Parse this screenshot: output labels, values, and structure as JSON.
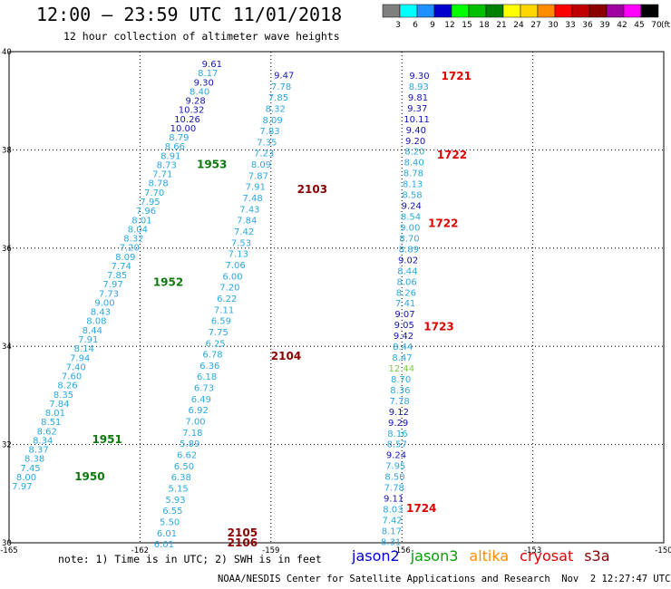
{
  "header": {
    "title": "12:00 – 23:59 UTC 11/01/2018",
    "subtitle": "12 hour collection of altimeter wave heights"
  },
  "color_scale": {
    "bins": [
      {
        "label": "3",
        "color": "#7f7f7f"
      },
      {
        "label": "6",
        "color": "#00ffff"
      },
      {
        "label": "9",
        "color": "#1e90ff"
      },
      {
        "label": "12",
        "color": "#0000cd"
      },
      {
        "label": "15",
        "color": "#00ff00"
      },
      {
        "label": "18",
        "color": "#00c000"
      },
      {
        "label": "21",
        "color": "#008000"
      },
      {
        "label": "24",
        "color": "#ffff00"
      },
      {
        "label": "27",
        "color": "#ffd700"
      },
      {
        "label": "30",
        "color": "#ff8c00"
      },
      {
        "label": "33",
        "color": "#ff0000"
      },
      {
        "label": "36",
        "color": "#c00000"
      },
      {
        "label": "39",
        "color": "#8b0000"
      },
      {
        "label": "42",
        "color": "#a000a0"
      },
      {
        "label": "45",
        "color": "#ff00ff"
      },
      {
        "label": "70",
        "color": "#000000"
      }
    ],
    "unit": "(ft)"
  },
  "map": {
    "lat_ticks": [
      "40",
      "38",
      "36",
      "34",
      "32",
      "30"
    ],
    "lon_ticks": [
      "-165",
      "-162",
      "-159",
      "-156",
      "-153",
      "-150"
    ],
    "colors": {
      "light": "#2aa8e0",
      "dark": "#1414b4",
      "green": "#0a7a0a",
      "darkred": "#8b0000",
      "red": "#e00000",
      "lime": "#7ccc3c"
    },
    "passes": [
      {
        "label": "1953",
        "color": "green",
        "lon": -160.7,
        "lat": 37.7
      },
      {
        "label": "1952",
        "color": "green",
        "lon": -161.7,
        "lat": 35.3
      },
      {
        "label": "1951",
        "color": "green",
        "lon": -163.1,
        "lat": 32.1
      },
      {
        "label": "1950",
        "color": "green",
        "lon": -163.5,
        "lat": 31.35
      },
      {
        "label": "2103",
        "color": "darkred",
        "lon": -158.4,
        "lat": 37.2
      },
      {
        "label": "2104",
        "color": "darkred",
        "lon": -159.0,
        "lat": 33.8
      },
      {
        "label": "2105",
        "color": "darkred",
        "lon": -160.0,
        "lat": 30.2
      },
      {
        "label": "2106",
        "color": "darkred",
        "lon": -160.0,
        "lat": 30.0
      },
      {
        "label": "1721",
        "color": "red",
        "lon": -155.1,
        "lat": 39.5
      },
      {
        "label": "1722",
        "color": "red",
        "lon": -155.2,
        "lat": 37.9
      },
      {
        "label": "1722",
        "color": "red",
        "lon": -155.4,
        "lat": 36.5
      },
      {
        "label": "1723",
        "color": "red",
        "lon": -155.5,
        "lat": 34.4
      },
      {
        "label": "1724",
        "color": "red",
        "lon": -155.9,
        "lat": 30.7
      }
    ],
    "tracks": [
      {
        "name": "track-a",
        "start": [
          -160.35,
          39.76
        ],
        "end": [
          -164.7,
          31.16
        ],
        "values": [
          [
            "9.61",
            "dark"
          ],
          [
            "8.17",
            "light"
          ],
          [
            "9.30",
            "dark"
          ],
          [
            "8.40",
            "light"
          ],
          [
            "9.28",
            "dark"
          ],
          [
            "10.32",
            "dark"
          ],
          [
            "10.26",
            "dark"
          ],
          [
            "10.00",
            "dark"
          ],
          [
            "8.79",
            "light"
          ],
          [
            "8.66",
            "light"
          ],
          [
            "8.91",
            "light"
          ],
          [
            "8.73",
            "light"
          ],
          [
            "7.71",
            "light"
          ],
          [
            "8.78",
            "light"
          ],
          [
            "7.70",
            "light"
          ],
          [
            "7.95",
            "light"
          ],
          [
            "7.96",
            "light"
          ],
          [
            "8.01",
            "light"
          ],
          [
            "8.04",
            "light"
          ],
          [
            "8.32",
            "light"
          ],
          [
            "7.20",
            "light"
          ],
          [
            "8.09",
            "light"
          ],
          [
            "7.74",
            "light"
          ],
          [
            "7.85",
            "light"
          ],
          [
            "7.97",
            "light"
          ],
          [
            "7.73",
            "light"
          ],
          [
            "9.00",
            "light"
          ],
          [
            "8.43",
            "light"
          ],
          [
            "8.08",
            "light"
          ],
          [
            "8.44",
            "light"
          ],
          [
            "7.91",
            "light"
          ],
          [
            "8.14",
            "light"
          ],
          [
            "7.94",
            "light"
          ],
          [
            "7.40",
            "light"
          ],
          [
            "7.60",
            "light"
          ],
          [
            "8.26",
            "light"
          ],
          [
            "8.35",
            "light"
          ],
          [
            "7.84",
            "light"
          ],
          [
            "8.01",
            "light"
          ],
          [
            "8.51",
            "light"
          ],
          [
            "8.62",
            "light"
          ],
          [
            "8.34",
            "light"
          ],
          [
            "8.37",
            "light"
          ],
          [
            "8.38",
            "light"
          ],
          [
            "7.45",
            "light"
          ],
          [
            "8.00",
            "light"
          ],
          [
            "7.97",
            "light"
          ]
        ]
      },
      {
        "name": "track-b",
        "start": [
          -158.7,
          39.53
        ],
        "end": [
          -161.45,
          29.98
        ],
        "values": [
          [
            "9.47",
            "dark"
          ],
          [
            "7.78",
            "light"
          ],
          [
            "7.85",
            "light"
          ],
          [
            "8.32",
            "light"
          ],
          [
            "8.09",
            "light"
          ],
          [
            "7.83",
            "light"
          ],
          [
            "7.35",
            "light"
          ],
          [
            "7.23",
            "light"
          ],
          [
            "8.09",
            "light"
          ],
          [
            "7.87",
            "light"
          ],
          [
            "7.91",
            "light"
          ],
          [
            "7.48",
            "light"
          ],
          [
            "7.43",
            "light"
          ],
          [
            "7.84",
            "light"
          ],
          [
            "7.42",
            "light"
          ],
          [
            "7.53",
            "light"
          ],
          [
            "7.13",
            "light"
          ],
          [
            "7.06",
            "light"
          ],
          [
            "6.00",
            "light"
          ],
          [
            "7.20",
            "light"
          ],
          [
            "6.22",
            "light"
          ],
          [
            "7.11",
            "light"
          ],
          [
            "6.59",
            "light"
          ],
          [
            "7.75",
            "light"
          ],
          [
            "6.25",
            "light"
          ],
          [
            "6.78",
            "light"
          ],
          [
            "6.36",
            "light"
          ],
          [
            "6.18",
            "light"
          ],
          [
            "6.73",
            "light"
          ],
          [
            "6.49",
            "light"
          ],
          [
            "6.92",
            "light"
          ],
          [
            "7.00",
            "light"
          ],
          [
            "7.18",
            "light"
          ],
          [
            "5.89",
            "light"
          ],
          [
            "6.62",
            "light"
          ],
          [
            "6.50",
            "light"
          ],
          [
            "6.38",
            "light"
          ],
          [
            "5.15",
            "light"
          ],
          [
            "5.93",
            "light"
          ],
          [
            "6.55",
            "light"
          ],
          [
            "5.50",
            "light"
          ],
          [
            "6.01",
            "light"
          ],
          [
            "6.01",
            "light"
          ]
        ]
      },
      {
        "name": "track-c",
        "start": [
          -155.6,
          39.52
        ],
        "end": [
          -156.25,
          30.03
        ],
        "values": [
          [
            "9.30",
            "dark"
          ],
          [
            "8.93",
            "light"
          ],
          [
            "9.81",
            "dark"
          ],
          [
            "9.37",
            "dark"
          ],
          [
            "10.11",
            "dark"
          ],
          [
            "9.40",
            "dark"
          ],
          [
            "9.20",
            "dark"
          ],
          [
            "8.20",
            "light"
          ],
          [
            "8.40",
            "light"
          ],
          [
            "8.78",
            "light"
          ],
          [
            "8.13",
            "light"
          ],
          [
            "8.58",
            "light"
          ],
          [
            "9.24",
            "dark"
          ],
          [
            "8.54",
            "light"
          ],
          [
            "9.00",
            "light"
          ],
          [
            "8.70",
            "light"
          ],
          [
            "8.89",
            "light"
          ],
          [
            "9.02",
            "dark"
          ],
          [
            "8.44",
            "light"
          ],
          [
            "8.06",
            "light"
          ],
          [
            "8.26",
            "light"
          ],
          [
            "7.41",
            "light"
          ],
          [
            "9.07",
            "dark"
          ],
          [
            "9.05",
            "dark"
          ],
          [
            "9.42",
            "dark"
          ],
          [
            "8.44",
            "light"
          ],
          [
            "8.47",
            "light"
          ],
          [
            "12.44",
            "lime"
          ],
          [
            "8.70",
            "light"
          ],
          [
            "8.36",
            "light"
          ],
          [
            "7.78",
            "light"
          ],
          [
            "9.12",
            "dark"
          ],
          [
            "9.29",
            "dark"
          ],
          [
            "8.16",
            "light"
          ],
          [
            "8.57",
            "light"
          ],
          [
            "9.24",
            "dark"
          ],
          [
            "7.95",
            "light"
          ],
          [
            "8.50",
            "light"
          ],
          [
            "7.78",
            "light"
          ],
          [
            "9.11",
            "dark"
          ],
          [
            "8.03",
            "light"
          ],
          [
            "7.42",
            "light"
          ],
          [
            "8.17",
            "light"
          ],
          [
            "8.31",
            "light"
          ]
        ]
      }
    ]
  },
  "note": "note: 1) Time is in UTC; 2) SWH is in feet",
  "satellites": [
    {
      "label": "jason2",
      "color": "#0000dd"
    },
    {
      "label": "jason3",
      "color": "#00a000"
    },
    {
      "label": "altika",
      "color": "#ff8c00"
    },
    {
      "label": "cryosat",
      "color": "#e00000"
    },
    {
      "label": "s3a",
      "color": "#8b0000"
    }
  ],
  "footer": "NOAA/NESDIS Center for Satellite Applications and Research  Nov  2 12:27:47 UTC 2018"
}
